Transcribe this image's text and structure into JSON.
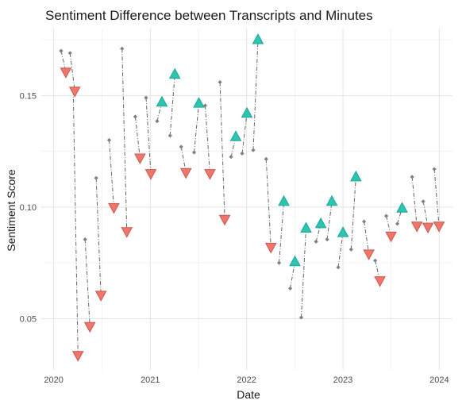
{
  "chart_data": {
    "type": "scatter",
    "title": "Sentiment Difference between Transcripts and Minutes",
    "xlabel": "Date",
    "ylabel": "Sentiment Score",
    "xlim": [
      "2019-11-15",
      "2024-02-20"
    ],
    "ylim": [
      0.027,
      0.18
    ],
    "x_ticks": [
      "2020",
      "2021",
      "2022",
      "2023",
      "2024"
    ],
    "x_tick_dates": [
      "2020-01-01",
      "2021-01-01",
      "2022-01-01",
      "2023-01-01",
      "2024-01-01"
    ],
    "y_ticks": [
      0.05,
      0.1,
      0.15
    ],
    "y_tick_labels": [
      "0.05",
      "0.10",
      "0.15"
    ],
    "grid": true,
    "legend": "none",
    "colors": {
      "up": "#2ec4b0",
      "up_stroke": "#1aa898",
      "down": "#f0766b",
      "down_stroke": "#c85a50",
      "point": "#808080",
      "connector": "#666666"
    },
    "points": [
      {
        "date": "2020-01-29",
        "from": 0.17,
        "to": 0.1605,
        "direction": "down"
      },
      {
        "date": "2020-03-03",
        "from": 0.169,
        "to": 0.152,
        "direction": "down"
      },
      {
        "date": "2020-03-15",
        "from": 0.152,
        "to": 0.0335,
        "direction": "down"
      },
      {
        "date": "2020-04-29",
        "from": 0.0855,
        "to": 0.0465,
        "direction": "down"
      },
      {
        "date": "2020-06-10",
        "from": 0.113,
        "to": 0.0605,
        "direction": "down"
      },
      {
        "date": "2020-07-29",
        "from": 0.13,
        "to": 0.0998,
        "direction": "down"
      },
      {
        "date": "2020-09-16",
        "from": 0.171,
        "to": 0.089,
        "direction": "down"
      },
      {
        "date": "2020-11-05",
        "from": 0.1405,
        "to": 0.122,
        "direction": "down"
      },
      {
        "date": "2020-12-16",
        "from": 0.149,
        "to": 0.115,
        "direction": "down"
      },
      {
        "date": "2021-01-27",
        "from": 0.1385,
        "to": 0.147,
        "direction": "up"
      },
      {
        "date": "2021-03-17",
        "from": 0.132,
        "to": 0.1595,
        "direction": "up"
      },
      {
        "date": "2021-04-28",
        "from": 0.127,
        "to": 0.1155,
        "direction": "down"
      },
      {
        "date": "2021-06-16",
        "from": 0.1245,
        "to": 0.1465,
        "direction": "up"
      },
      {
        "date": "2021-07-28",
        "from": 0.1455,
        "to": 0.115,
        "direction": "down"
      },
      {
        "date": "2021-09-22",
        "from": 0.156,
        "to": 0.0945,
        "direction": "down"
      },
      {
        "date": "2021-11-03",
        "from": 0.1225,
        "to": 0.1315,
        "direction": "up"
      },
      {
        "date": "2021-12-15",
        "from": 0.124,
        "to": 0.142,
        "direction": "up"
      },
      {
        "date": "2022-01-26",
        "from": 0.1255,
        "to": 0.175,
        "direction": "up"
      },
      {
        "date": "2022-03-16",
        "from": 0.1215,
        "to": 0.082,
        "direction": "down"
      },
      {
        "date": "2022-05-04",
        "from": 0.075,
        "to": 0.1025,
        "direction": "up"
      },
      {
        "date": "2022-06-15",
        "from": 0.0635,
        "to": 0.0755,
        "direction": "up"
      },
      {
        "date": "2022-07-27",
        "from": 0.0505,
        "to": 0.0905,
        "direction": "up"
      },
      {
        "date": "2022-09-21",
        "from": 0.0845,
        "to": 0.0925,
        "direction": "up"
      },
      {
        "date": "2022-11-02",
        "from": 0.0855,
        "to": 0.1025,
        "direction": "up"
      },
      {
        "date": "2022-12-14",
        "from": 0.073,
        "to": 0.0885,
        "direction": "up"
      },
      {
        "date": "2023-02-01",
        "from": 0.081,
        "to": 0.1135,
        "direction": "up"
      },
      {
        "date": "2023-03-22",
        "from": 0.0935,
        "to": 0.079,
        "direction": "down"
      },
      {
        "date": "2023-05-03",
        "from": 0.076,
        "to": 0.067,
        "direction": "down"
      },
      {
        "date": "2023-06-14",
        "from": 0.096,
        "to": 0.087,
        "direction": "down"
      },
      {
        "date": "2023-07-26",
        "from": 0.0925,
        "to": 0.0995,
        "direction": "up"
      },
      {
        "date": "2023-09-20",
        "from": 0.1135,
        "to": 0.0915,
        "direction": "down"
      },
      {
        "date": "2023-11-01",
        "from": 0.1025,
        "to": 0.091,
        "direction": "down"
      },
      {
        "date": "2023-12-13",
        "from": 0.117,
        "to": 0.0915,
        "direction": "down"
      }
    ]
  }
}
